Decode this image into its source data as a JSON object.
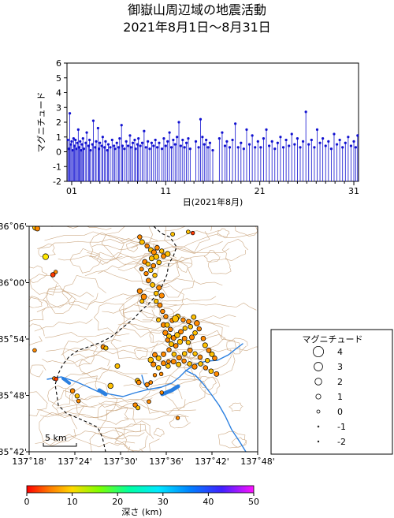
{
  "title_line1": "御嶽山周辺域の地震活動",
  "title_line2": "2021年8月1日〜8月31日",
  "chart_data": [
    {
      "type": "bar",
      "description_of_marks": "stem (lollipop) plot of event magnitudes",
      "ylabel": "マグニチュード",
      "xlabel": "日(2021年8月)",
      "ylim": [
        -2,
        6
      ],
      "xlim": [
        0.5,
        31.5
      ],
      "yticks": [
        -2,
        -1,
        0,
        1,
        2,
        3,
        4,
        5,
        6
      ],
      "xticks": [
        1,
        11,
        21,
        31
      ],
      "xtick_labels": [
        "01",
        "11",
        "21",
        "31"
      ],
      "stem_color": "#1010d0",
      "events": [
        [
          0.6,
          0.8
        ],
        [
          0.7,
          0.2
        ],
        [
          0.8,
          2.6
        ],
        [
          0.9,
          0.5
        ],
        [
          1.0,
          0.7
        ],
        [
          1.1,
          0.1
        ],
        [
          1.2,
          0.9
        ],
        [
          1.3,
          0.4
        ],
        [
          1.4,
          0.8
        ],
        [
          1.5,
          0.2
        ],
        [
          1.6,
          0.6
        ],
        [
          1.7,
          1.5
        ],
        [
          1.8,
          0.3
        ],
        [
          1.9,
          0.7
        ],
        [
          2.0,
          0.1
        ],
        [
          2.1,
          0.5
        ],
        [
          2.2,
          0.9
        ],
        [
          2.3,
          0.2
        ],
        [
          2.5,
          0.6
        ],
        [
          2.6,
          1.3
        ],
        [
          2.8,
          0.4
        ],
        [
          2.9,
          0.8
        ],
        [
          3.0,
          0.1
        ],
        [
          3.2,
          0.5
        ],
        [
          3.3,
          2.1
        ],
        [
          3.5,
          0.3
        ],
        [
          3.6,
          0.7
        ],
        [
          3.8,
          1.6
        ],
        [
          3.9,
          0.2
        ],
        [
          4.0,
          0.6
        ],
        [
          4.2,
          0.4
        ],
        [
          4.3,
          1.0
        ],
        [
          4.5,
          0.3
        ],
        [
          4.6,
          0.7
        ],
        [
          4.8,
          0.1
        ],
        [
          4.9,
          0.5
        ],
        [
          5.1,
          0.3
        ],
        [
          5.3,
          0.8
        ],
        [
          5.5,
          0.4
        ],
        [
          5.6,
          0.2
        ],
        [
          5.8,
          0.6
        ],
        [
          6.0,
          0.3
        ],
        [
          6.1,
          0.9
        ],
        [
          6.3,
          1.8
        ],
        [
          6.4,
          0.4
        ],
        [
          6.6,
          0.2
        ],
        [
          6.8,
          0.7
        ],
        [
          7.0,
          0.4
        ],
        [
          7.2,
          1.1
        ],
        [
          7.3,
          0.3
        ],
        [
          7.5,
          0.6
        ],
        [
          7.7,
          0.8
        ],
        [
          7.8,
          0.2
        ],
        [
          8.0,
          0.5
        ],
        [
          8.1,
          0.9
        ],
        [
          8.3,
          0.4
        ],
        [
          8.5,
          0.6
        ],
        [
          8.7,
          1.4
        ],
        [
          8.9,
          0.3
        ],
        [
          9.1,
          0.7
        ],
        [
          9.3,
          0.2
        ],
        [
          9.5,
          0.6
        ],
        [
          9.7,
          0.4
        ],
        [
          9.9,
          0.8
        ],
        [
          10.1,
          0.3
        ],
        [
          10.3,
          0.6
        ],
        [
          10.6,
          0.2
        ],
        [
          10.8,
          0.9
        ],
        [
          11.0,
          0.4
        ],
        [
          11.2,
          0.7
        ],
        [
          11.4,
          1.3
        ],
        [
          11.6,
          0.3
        ],
        [
          11.8,
          0.8
        ],
        [
          12.0,
          0.5
        ],
        [
          12.2,
          1.0
        ],
        [
          12.4,
          2.0
        ],
        [
          12.6,
          0.4
        ],
        [
          12.8,
          0.8
        ],
        [
          13.0,
          0.3
        ],
        [
          13.2,
          0.6
        ],
        [
          13.4,
          0.9
        ],
        [
          13.6,
          0.2
        ],
        [
          14.2,
          0.7
        ],
        [
          14.5,
          0.3
        ],
        [
          14.7,
          2.2
        ],
        [
          14.9,
          1.0
        ],
        [
          15.1,
          0.5
        ],
        [
          15.3,
          0.8
        ],
        [
          15.5,
          0.3
        ],
        [
          15.7,
          0.6
        ],
        [
          16.0,
          0.1
        ],
        [
          16.7,
          0.9
        ],
        [
          17.0,
          1.3
        ],
        [
          17.3,
          0.4
        ],
        [
          17.5,
          0.7
        ],
        [
          17.8,
          0.3
        ],
        [
          18.1,
          0.8
        ],
        [
          18.4,
          1.9
        ],
        [
          18.7,
          0.3
        ],
        [
          19.0,
          0.6
        ],
        [
          19.3,
          0.2
        ],
        [
          19.6,
          1.5
        ],
        [
          19.9,
          0.5
        ],
        [
          20.2,
          1.1
        ],
        [
          20.5,
          0.3
        ],
        [
          20.8,
          0.7
        ],
        [
          21.1,
          0.3
        ],
        [
          21.4,
          0.9
        ],
        [
          21.7,
          1.5
        ],
        [
          22.0,
          0.4
        ],
        [
          22.3,
          0.7
        ],
        [
          22.6,
          0.2
        ],
        [
          22.9,
          0.6
        ],
        [
          23.2,
          1.0
        ],
        [
          23.5,
          0.3
        ],
        [
          23.8,
          0.8
        ],
        [
          24.1,
          0.4
        ],
        [
          24.4,
          1.2
        ],
        [
          24.7,
          0.5
        ],
        [
          25.0,
          0.9
        ],
        [
          25.3,
          0.3
        ],
        [
          25.6,
          0.7
        ],
        [
          25.9,
          2.7
        ],
        [
          26.2,
          0.5
        ],
        [
          26.5,
          0.8
        ],
        [
          26.8,
          0.3
        ],
        [
          27.1,
          1.5
        ],
        [
          27.4,
          0.6
        ],
        [
          27.7,
          0.9
        ],
        [
          28.0,
          0.4
        ],
        [
          28.3,
          0.7
        ],
        [
          28.6,
          0.2
        ],
        [
          28.9,
          1.2
        ],
        [
          29.2,
          0.5
        ],
        [
          29.5,
          0.8
        ],
        [
          29.8,
          0.3
        ],
        [
          30.1,
          0.6
        ],
        [
          30.4,
          1.0
        ],
        [
          30.7,
          0.4
        ],
        [
          31.0,
          0.7
        ],
        [
          31.2,
          0.3
        ],
        [
          31.4,
          1.1
        ]
      ]
    },
    {
      "type": "scatter",
      "description_of_marks": "epicenter map; circle size = magnitude, color = depth",
      "xlim": [
        137.3,
        137.8
      ],
      "ylim": [
        35.7,
        36.1
      ],
      "xtick_labels": [
        "137˚18'",
        "137˚24'",
        "137˚30'",
        "137˚36'",
        "137˚42'",
        "137˚48'"
      ],
      "xtick_values": [
        137.3,
        137.4,
        137.5,
        137.6,
        137.7,
        137.8
      ],
      "ytick_labels": [
        "35˚42'",
        "35˚48'",
        "35˚54'",
        "36˚00'",
        "36˚06'"
      ],
      "ytick_values": [
        35.7,
        35.8,
        35.9,
        36.0,
        36.1
      ],
      "scale_label": "5 km",
      "events": [
        [
          137.314,
          36.098,
          1.5,
          3
        ],
        [
          137.318,
          36.096,
          1.0,
          2
        ],
        [
          137.336,
          36.046,
          1.5,
          4
        ],
        [
          137.358,
          36.019,
          0.3,
          2
        ],
        [
          137.352,
          36.014,
          0.8,
          1
        ],
        [
          137.312,
          35.88,
          0.3,
          2
        ],
        [
          137.355,
          35.83,
          0.4,
          2
        ],
        [
          137.359,
          35.829,
          0.3,
          1
        ],
        [
          137.395,
          35.808,
          0.8,
          2
        ],
        [
          137.405,
          35.799,
          0.7,
          3
        ],
        [
          137.408,
          35.79,
          0.4,
          2
        ],
        [
          137.462,
          35.886,
          0.8,
          2
        ],
        [
          137.468,
          35.884,
          0.6,
          3
        ],
        [
          137.478,
          35.817,
          1.2,
          3
        ],
        [
          137.493,
          35.852,
          0.9,
          3
        ],
        [
          137.537,
          35.826,
          0.9,
          3
        ],
        [
          137.54,
          35.823,
          0.8,
          2
        ],
        [
          137.558,
          35.819,
          0.7,
          2
        ],
        [
          137.566,
          35.823,
          0.4,
          2
        ],
        [
          137.575,
          35.836,
          0.3,
          2
        ],
        [
          137.589,
          35.838,
          0.3,
          2
        ],
        [
          137.605,
          35.86,
          0.4,
          2
        ],
        [
          137.532,
          35.783,
          0.7,
          2
        ],
        [
          137.538,
          35.778,
          0.6,
          3
        ],
        [
          137.562,
          35.789,
          0.4,
          2
        ],
        [
          137.59,
          35.805,
          0.3,
          2
        ],
        [
          137.625,
          35.76,
          0.3,
          2
        ],
        [
          137.648,
          36.09,
          0.4,
          3
        ],
        [
          137.658,
          36.088,
          0.3,
          1
        ],
        [
          137.614,
          36.086,
          0.5,
          3
        ],
        [
          137.542,
          36.081,
          0.7,
          2
        ],
        [
          137.547,
          36.072,
          1.0,
          3
        ],
        [
          137.558,
          36.065,
          0.7,
          2
        ],
        [
          137.566,
          36.058,
          0.9,
          3
        ],
        [
          137.573,
          36.054,
          1.0,
          2
        ],
        [
          137.578,
          36.046,
          1.3,
          3
        ],
        [
          137.568,
          36.043,
          1.0,
          3
        ],
        [
          137.553,
          36.037,
          0.9,
          2
        ],
        [
          137.56,
          36.033,
          0.7,
          3
        ],
        [
          137.572,
          36.03,
          0.8,
          2
        ],
        [
          137.584,
          36.036,
          0.8,
          3
        ],
        [
          137.594,
          36.047,
          0.9,
          2
        ],
        [
          137.603,
          36.051,
          1.1,
          3
        ],
        [
          137.59,
          36.056,
          0.7,
          3
        ],
        [
          137.58,
          36.062,
          0.8,
          2
        ],
        [
          137.566,
          36.022,
          0.8,
          3
        ],
        [
          137.556,
          36.016,
          0.7,
          2
        ],
        [
          137.546,
          36.024,
          0.5,
          2
        ],
        [
          137.575,
          36.013,
          0.7,
          3
        ],
        [
          137.561,
          36.004,
          0.8,
          2
        ],
        [
          137.57,
          35.996,
          0.9,
          3
        ],
        [
          137.584,
          35.991,
          1.0,
          2
        ],
        [
          137.578,
          35.981,
          0.8,
          3
        ],
        [
          137.59,
          35.977,
          1.1,
          2
        ],
        [
          137.578,
          35.967,
          0.7,
          3
        ],
        [
          137.586,
          35.96,
          0.9,
          2
        ],
        [
          137.542,
          35.985,
          1.1,
          2
        ],
        [
          137.551,
          35.975,
          1.3,
          2
        ],
        [
          137.547,
          35.967,
          0.6,
          3
        ],
        [
          137.592,
          35.949,
          0.7,
          2
        ],
        [
          137.594,
          35.925,
          1.0,
          2
        ],
        [
          137.602,
          35.925,
          0.9,
          3
        ],
        [
          137.609,
          35.917,
          0.8,
          2
        ],
        [
          137.598,
          35.911,
          1.1,
          2
        ],
        [
          137.606,
          35.905,
          0.9,
          3
        ],
        [
          137.616,
          35.902,
          1.0,
          2
        ],
        [
          137.624,
          35.907,
          1.2,
          3
        ],
        [
          137.632,
          35.913,
          0.9,
          2
        ],
        [
          137.641,
          35.919,
          0.7,
          3
        ],
        [
          137.649,
          35.931,
          0.8,
          2
        ],
        [
          137.66,
          35.939,
          0.9,
          3
        ],
        [
          137.667,
          35.928,
          1.2,
          2
        ],
        [
          137.653,
          35.922,
          0.8,
          3
        ],
        [
          137.637,
          35.934,
          0.7,
          2
        ],
        [
          137.625,
          35.94,
          1.1,
          3
        ],
        [
          137.613,
          35.933,
          0.8,
          2
        ],
        [
          137.603,
          35.898,
          0.7,
          2
        ],
        [
          137.611,
          35.891,
          1.0,
          3
        ],
        [
          137.621,
          35.888,
          0.8,
          2
        ],
        [
          137.63,
          35.895,
          1.1,
          3
        ],
        [
          137.64,
          35.901,
          0.9,
          2
        ],
        [
          137.648,
          35.894,
          0.7,
          3
        ],
        [
          137.656,
          35.903,
          1.0,
          2
        ],
        [
          137.663,
          35.911,
          0.8,
          3
        ],
        [
          137.672,
          35.918,
          0.7,
          2
        ],
        [
          137.681,
          35.901,
          0.8,
          2
        ],
        [
          137.685,
          35.889,
          1.0,
          3
        ],
        [
          137.693,
          35.88,
          0.9,
          2
        ],
        [
          137.7,
          35.873,
          1.0,
          3
        ],
        [
          137.706,
          35.866,
          0.8,
          2
        ],
        [
          137.69,
          35.862,
          0.7,
          3
        ],
        [
          137.674,
          35.868,
          0.8,
          2
        ],
        [
          137.663,
          35.874,
          0.7,
          3
        ],
        [
          137.652,
          35.88,
          0.9,
          2
        ],
        [
          137.64,
          35.874,
          0.8,
          3
        ],
        [
          137.628,
          35.867,
          1.0,
          2
        ],
        [
          137.617,
          35.873,
          0.8,
          3
        ],
        [
          137.606,
          35.881,
          0.7,
          2
        ],
        [
          137.594,
          35.873,
          0.9,
          2
        ],
        [
          137.583,
          35.866,
          1.0,
          3
        ],
        [
          137.575,
          35.872,
          0.9,
          2
        ],
        [
          137.566,
          35.863,
          1.2,
          3
        ],
        [
          137.572,
          35.855,
          1.0,
          2
        ],
        [
          137.583,
          35.849,
          0.8,
          3
        ],
        [
          137.594,
          35.857,
          0.9,
          2
        ],
        [
          137.604,
          35.852,
          0.8,
          3
        ],
        [
          137.616,
          35.86,
          1.0,
          2
        ],
        [
          137.627,
          35.855,
          0.9,
          3
        ],
        [
          137.639,
          35.861,
          0.7,
          2
        ],
        [
          137.651,
          35.856,
          0.8,
          3
        ],
        [
          137.662,
          35.851,
          1.1,
          2
        ],
        [
          137.675,
          35.856,
          0.8,
          3
        ],
        [
          137.686,
          35.849,
          0.7,
          2
        ],
        [
          137.698,
          35.843,
          0.8,
          3
        ],
        [
          137.71,
          35.838,
          0.9,
          2
        ],
        [
          137.62,
          35.936,
          1.8,
          3
        ],
        [
          137.599,
          35.94,
          0.7,
          2
        ],
        [
          137.583,
          35.934,
          0.6,
          3
        ]
      ],
      "depth_colorbar": {
        "label": "深さ (km)",
        "ticks": [
          0,
          10,
          20,
          30,
          40,
          50
        ],
        "range": [
          0,
          50
        ]
      },
      "legend": {
        "title": "マグニチュード",
        "entries": [
          "4",
          "3",
          "2",
          "1",
          "0",
          "-1",
          "-2"
        ],
        "values": [
          4,
          3,
          2,
          1,
          0,
          -1,
          -2
        ]
      }
    }
  ]
}
